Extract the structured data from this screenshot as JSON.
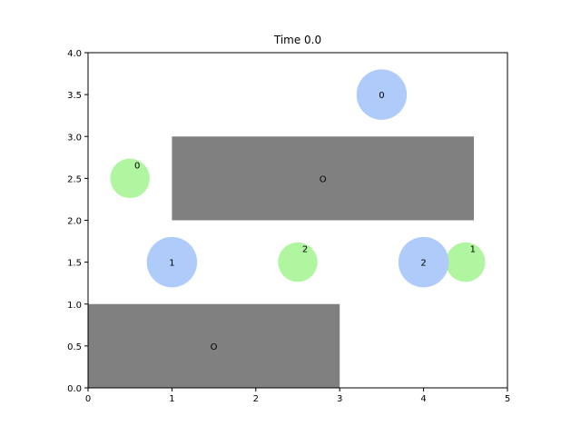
{
  "chart_data": {
    "type": "scatter",
    "title": "Time 0.0",
    "xlabel": "",
    "ylabel": "",
    "xlim": [
      0,
      5
    ],
    "ylim": [
      0,
      4
    ],
    "grid": false,
    "legend": "none",
    "x_ticks": [
      "0",
      "1",
      "2",
      "3",
      "4",
      "5"
    ],
    "y_ticks": [
      "0.0",
      "0.5",
      "1.0",
      "1.5",
      "2.0",
      "2.5",
      "3.0",
      "3.5",
      "4.0"
    ],
    "obstacles": [
      {
        "label": "O",
        "x0": 1.0,
        "y0": 2.0,
        "x1": 4.6,
        "y1": 3.0,
        "label_x": 2.8,
        "label_y": 2.5
      },
      {
        "label": "O",
        "x0": 0.0,
        "y0": 0.0,
        "x1": 3.0,
        "y1": 1.0,
        "label_x": 1.5,
        "label_y": 0.5
      }
    ],
    "agents": [
      {
        "label": "0",
        "x": 3.5,
        "y": 3.5,
        "r": 0.3
      },
      {
        "label": "1",
        "x": 1.0,
        "y": 1.5,
        "r": 0.3
      },
      {
        "label": "2",
        "x": 4.0,
        "y": 1.5,
        "r": 0.3
      }
    ],
    "goals": [
      {
        "label": "0",
        "x": 0.5,
        "y": 2.5,
        "r": 0.24
      },
      {
        "label": "2",
        "x": 2.5,
        "y": 1.5,
        "r": 0.24
      },
      {
        "label": "1",
        "x": 4.5,
        "y": 1.5,
        "r": 0.24
      }
    ],
    "colors": {
      "agent": "#aecbfa",
      "goal": "#b0f5a0",
      "obstacle": "#808080",
      "axes": "#000000"
    }
  }
}
